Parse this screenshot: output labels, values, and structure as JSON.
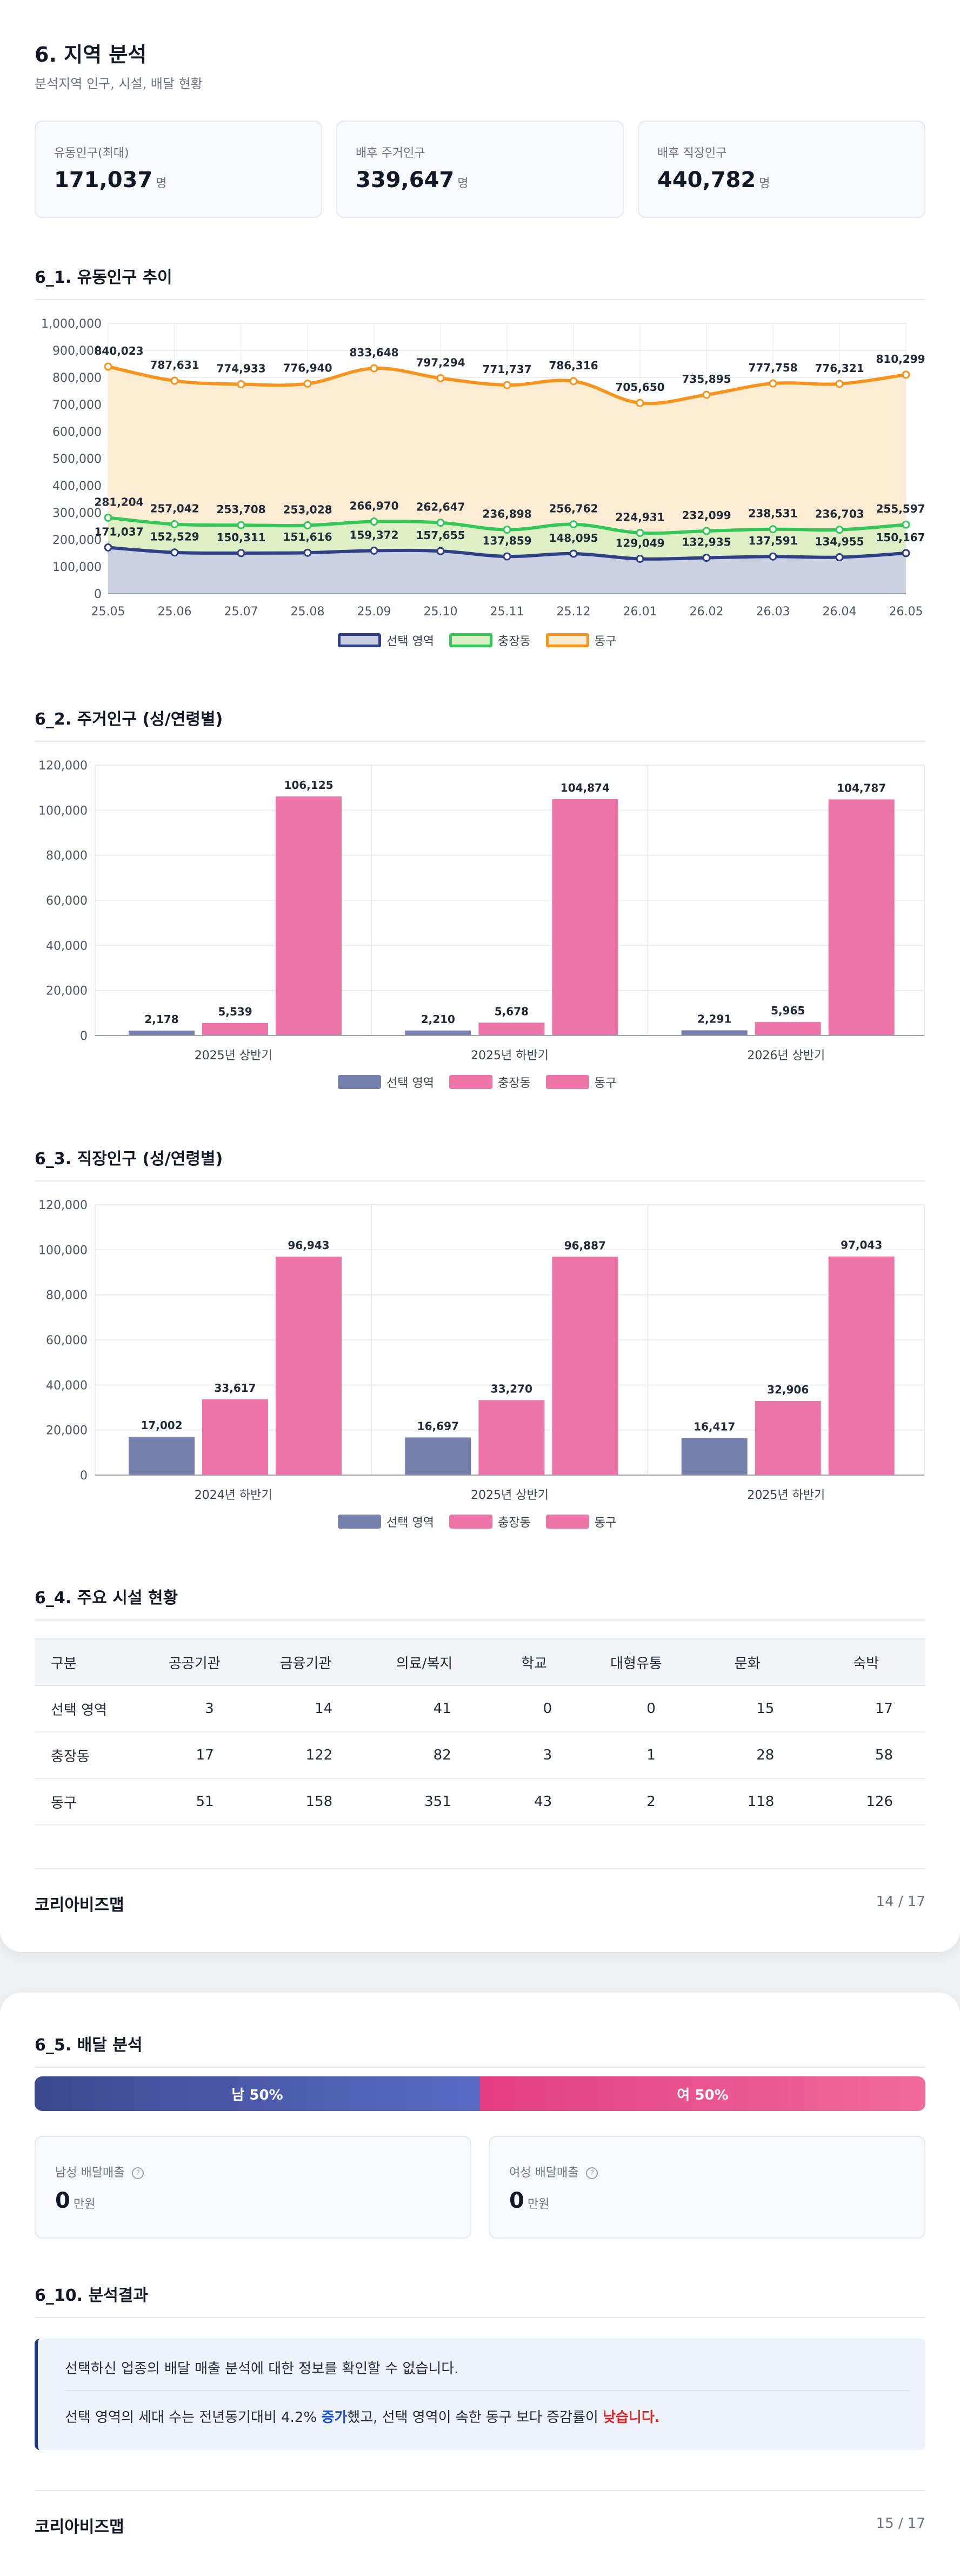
{
  "page1": {
    "title": "6. 지역 분석",
    "subtitle": "분석지역 인구, 시설, 배달 현황",
    "cards": [
      {
        "label": "유동인구(최대)",
        "value": "171,037",
        "unit": "명"
      },
      {
        "label": "배후 주거인구",
        "value": "339,647",
        "unit": "명"
      },
      {
        "label": "배후 직장인구",
        "value": "440,782",
        "unit": "명"
      }
    ],
    "section1_title": "6_1. 유동인구 추이",
    "section2_title": "6_2. 주거인구 (성/연령별)",
    "section3_title": "6_3. 직장인구 (성/연령별)",
    "section4_title": "6_4. 주요 시설 현황",
    "facilities": {
      "headers": [
        "구분",
        "공공기관",
        "금융기관",
        "의료/복지",
        "학교",
        "대형유통",
        "문화",
        "숙박"
      ],
      "rows": [
        [
          "선택 영역",
          "3",
          "14",
          "41",
          "0",
          "0",
          "15",
          "17"
        ],
        [
          "충장동",
          "17",
          "122",
          "82",
          "3",
          "1",
          "28",
          "58"
        ],
        [
          "동구",
          "51",
          "158",
          "351",
          "43",
          "2",
          "118",
          "126"
        ]
      ]
    },
    "footer_brand": "코리아비즈맵",
    "footer_page": "14 / 17"
  },
  "page2": {
    "section5_title": "6_5. 배달 분석",
    "male_bar": "남 50%",
    "female_bar": "여 50%",
    "male_card": {
      "label": "남성 배달매출",
      "value": "0",
      "unit": "만원"
    },
    "female_card": {
      "label": "여성 배달매출",
      "value": "0",
      "unit": "만원"
    },
    "help_icon": "?",
    "section10_title": "6_10. 분석결과",
    "result_line1": "선택하신 업종의 배달 매출 분석에 대한 정보를 확인할 수 없습니다.",
    "result_line2_a": "선택 영역의 세대 수는 전년동기대비 4.2% ",
    "result_line2_up": "증가",
    "result_line2_b": "했고, 선택 영역이 속한 동구 보다 증감률이 ",
    "result_line2_low": "낮습니다.",
    "footer_brand": "코리아비즈맵",
    "footer_page": "15 / 17"
  },
  "chart_data": [
    {
      "type": "area",
      "title": "6_1. 유동인구 추이",
      "x": [
        "25.05",
        "25.06",
        "25.07",
        "25.08",
        "25.09",
        "25.10",
        "25.11",
        "25.12",
        "26.01",
        "26.02",
        "26.03",
        "26.04",
        "26.05"
      ],
      "ylim": [
        0,
        1000000
      ],
      "yticks": [
        "0",
        "100,000",
        "200,000",
        "300,000",
        "400,000",
        "500,000",
        "600,000",
        "700,000",
        "800,000",
        "900,000",
        "1,000,000"
      ],
      "grid": true,
      "legend": "bottom-center",
      "series": [
        {
          "name": "선택 영역",
          "color": "#2e3f86",
          "fill": "#c9cfe3",
          "values": [
            171037,
            152529,
            150311,
            151616,
            159372,
            157655,
            137859,
            148095,
            129049,
            132935,
            137591,
            134955,
            150167
          ],
          "labels": [
            "171,037",
            "152,529",
            "150,311",
            "151,616",
            "159,372",
            "157,655",
            "137,859",
            "148,095",
            "129,049",
            "132,935",
            "137,591",
            "134,955",
            "150,167"
          ]
        },
        {
          "name": "충장동",
          "color": "#34c759",
          "fill": "#dcefc4",
          "values": [
            281204,
            257042,
            253708,
            253028,
            266970,
            262647,
            236898,
            256762,
            224931,
            232099,
            238531,
            236703,
            255597
          ],
          "labels": [
            "281,204",
            "257,042",
            "253,708",
            "253,028",
            "266,970",
            "262,647",
            "236,898",
            "256,762",
            "224,931",
            "232,099",
            "238,531",
            "236,703",
            "255,597"
          ]
        },
        {
          "name": "동구",
          "color": "#f7941d",
          "fill": "#fdebd2",
          "values": [
            840023,
            787631,
            774933,
            776940,
            833648,
            797294,
            771737,
            786316,
            705650,
            735895,
            777758,
            776321,
            810299
          ],
          "labels": [
            "840,023",
            "787,631",
            "774,933",
            "776,940",
            "833,648",
            "797,294",
            "771,737",
            "786,316",
            "705,650",
            "735,895",
            "777,758",
            "776,321",
            "810,299"
          ]
        }
      ]
    },
    {
      "type": "bar",
      "title": "6_2. 주거인구 (성/연령별)",
      "categories": [
        "2025년 상반기",
        "2025년 하반기",
        "2026년 상반기"
      ],
      "ylim": [
        0,
        120000
      ],
      "yticks": [
        "0",
        "20,000",
        "40,000",
        "60,000",
        "80,000",
        "100,000",
        "120,000"
      ],
      "legend": "bottom-center",
      "series": [
        {
          "name": "선택 영역",
          "color": "#7680ad",
          "values": [
            2178,
            2210,
            2291
          ],
          "labels": [
            "2,178",
            "2,210",
            "2,291"
          ]
        },
        {
          "name": "충장동",
          "color": "#ec74a6",
          "values": [
            5539,
            5678,
            5965
          ],
          "labels": [
            "5,539",
            "5,678",
            "5,965"
          ]
        },
        {
          "name": "동구",
          "color": "#ec74a6",
          "values": [
            106125,
            104874,
            104787
          ],
          "labels": [
            "106,125",
            "104,874",
            "104,787"
          ]
        }
      ]
    },
    {
      "type": "bar",
      "title": "6_3. 직장인구 (성/연령별)",
      "categories": [
        "2024년 하반기",
        "2025년 상반기",
        "2025년 하반기"
      ],
      "ylim": [
        0,
        120000
      ],
      "yticks": [
        "0",
        "20,000",
        "40,000",
        "60,000",
        "80,000",
        "100,000",
        "120,000"
      ],
      "legend": "bottom-center",
      "series": [
        {
          "name": "선택 영역",
          "color": "#7680ad",
          "values": [
            17002,
            16697,
            16417
          ],
          "labels": [
            "17,002",
            "16,697",
            "16,417"
          ]
        },
        {
          "name": "충장동",
          "color": "#ec74a6",
          "values": [
            33617,
            33270,
            32906
          ],
          "labels": [
            "33,617",
            "33,270",
            "32,906"
          ]
        },
        {
          "name": "동구",
          "color": "#ec74a6",
          "values": [
            96943,
            96887,
            97043
          ],
          "labels": [
            "96,943",
            "96,887",
            "97,043"
          ]
        }
      ]
    }
  ]
}
